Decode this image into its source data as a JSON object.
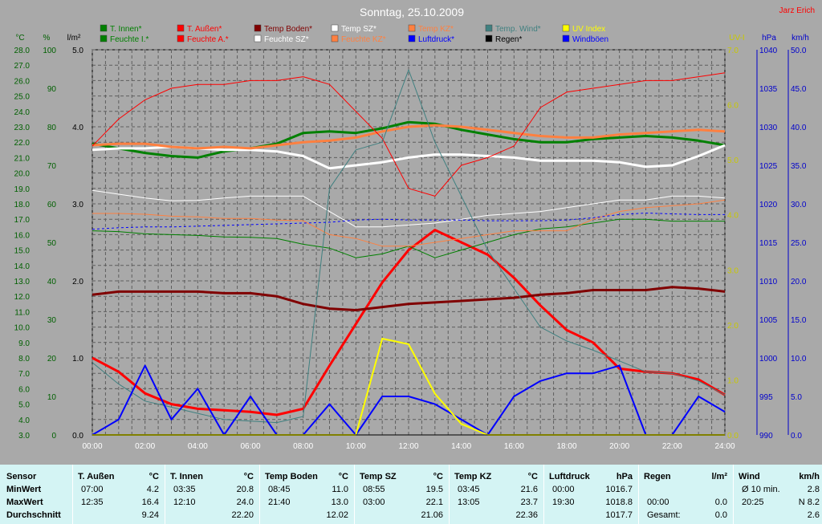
{
  "title": "Sonntag, 25.10.2009",
  "author": "Jarz Erich",
  "colors": {
    "background": "#a9a9a9",
    "plot": "#a9a9a9",
    "grid": "#5e5e5e",
    "green": "#00aa00",
    "navy": "#0000cc",
    "yellow": "#ffff00",
    "statsBg": "#d4f4f4"
  },
  "axes": {
    "left": [
      {
        "unit": "°C",
        "color": "#006000",
        "ticks": [
          "28.0",
          "27.0",
          "26.0",
          "25.0",
          "24.0",
          "23.0",
          "22.0",
          "21.0",
          "20.0",
          "19.0",
          "18.0",
          "17.0",
          "16.0",
          "15.0",
          "14.0",
          "13.0",
          "12.0",
          "11.0",
          "10.0",
          "9.0",
          "8.0",
          "7.0",
          "6.0",
          "5.0",
          "4.0",
          "3.0"
        ]
      },
      {
        "unit": "%",
        "color": "#006000",
        "ticks": [
          "100",
          "90",
          "80",
          "70",
          "60",
          "50",
          "40",
          "30",
          "20",
          "10",
          "0"
        ]
      },
      {
        "unit": "l/m²",
        "color": "#000000",
        "ticks": [
          "5.0",
          "4.0",
          "3.0",
          "2.0",
          "1.0",
          "0.0"
        ]
      }
    ],
    "right": [
      {
        "unit": "UV-I",
        "color": "#c8c800",
        "ticks": [
          "7.0",
          "6.0",
          "5.0",
          "4.0",
          "3.0",
          "2.0",
          "1.0",
          "0.0"
        ]
      },
      {
        "unit": "hPa",
        "color": "#0000cc",
        "ticks": [
          "1040",
          "1035",
          "1030",
          "1025",
          "1020",
          "1015",
          "1010",
          "1005",
          "1000",
          "995",
          "990"
        ]
      },
      {
        "unit": "km/h",
        "color": "#0000cc",
        "ticks": [
          "50.0",
          "45.0",
          "40.0",
          "35.0",
          "30.0",
          "25.0",
          "20.0",
          "15.0",
          "10.0",
          "5.0",
          "0.0"
        ]
      }
    ],
    "x": [
      "00:00",
      "02:00",
      "04:00",
      "06:00",
      "08:00",
      "10:00",
      "12:00",
      "14:00",
      "16:00",
      "18:00",
      "20:00",
      "22:00",
      "24:00"
    ]
  },
  "legend": [
    {
      "label": "T. Innen*",
      "color": "#008000"
    },
    {
      "label": "T. Außen*",
      "color": "#ff0000"
    },
    {
      "label": "Temp Boden*",
      "color": "#800000"
    },
    {
      "label": "Temp SZ*",
      "color": "#ffffff"
    },
    {
      "label": "Temp KZ*",
      "color": "#ff8040"
    },
    {
      "label": "Temp. Wind*",
      "color": "#408080"
    },
    {
      "label": "UV Index",
      "color": "#ffff00"
    },
    {
      "label": "Feuchte I.*",
      "color": "#008000"
    },
    {
      "label": "Feuchte A.*",
      "color": "#ff0000"
    },
    {
      "label": "Feuchte SZ*",
      "color": "#ffffff"
    },
    {
      "label": "Feuchte KZ*",
      "color": "#ff8040"
    },
    {
      "label": "Luftdruck*",
      "color": "#0000ff"
    },
    {
      "label": "Regen*",
      "color": "#000000"
    },
    {
      "label": "Windböen",
      "color": "#0000ff"
    }
  ],
  "chart_data": {
    "type": "line",
    "title": "Sonntag, 25.10.2009",
    "x_hours": [
      0,
      1,
      2,
      3,
      4,
      5,
      6,
      7,
      8,
      9,
      10,
      11,
      12,
      13,
      14,
      15,
      16,
      17,
      18,
      19,
      20,
      21,
      22,
      23,
      24
    ],
    "series": [
      {
        "name": "T. Innen*",
        "unit": "°C",
        "color": "#008000",
        "width": 3,
        "values": [
          21.9,
          21.6,
          21.3,
          21.1,
          21.0,
          21.4,
          21.6,
          21.9,
          22.6,
          22.7,
          22.6,
          22.9,
          23.3,
          23.2,
          22.8,
          22.5,
          22.2,
          22.0,
          22.0,
          22.2,
          22.3,
          22.4,
          22.3,
          22.1,
          21.8
        ]
      },
      {
        "name": "T. Außen*",
        "unit": "°C",
        "color": "#ff0000",
        "width": 3,
        "values": [
          8.0,
          7.1,
          5.7,
          5.0,
          4.7,
          4.6,
          4.5,
          4.3,
          4.7,
          7.5,
          10.2,
          12.9,
          15.0,
          16.3,
          15.5,
          14.7,
          13.2,
          11.4,
          9.8,
          9.0,
          7.3,
          7.1,
          7.0,
          6.6,
          5.6
        ]
      },
      {
        "name": "Temp Boden*",
        "unit": "°C",
        "color": "#800000",
        "width": 3,
        "values": [
          12.1,
          12.3,
          12.3,
          12.3,
          12.3,
          12.2,
          12.2,
          12.0,
          11.5,
          11.2,
          11.1,
          11.3,
          11.5,
          11.6,
          11.7,
          11.8,
          11.9,
          12.1,
          12.2,
          12.4,
          12.4,
          12.4,
          12.6,
          12.5,
          12.3
        ]
      },
      {
        "name": "Temp SZ*",
        "unit": "°C",
        "color": "#ffffff",
        "width": 3,
        "values": [
          21.5,
          21.6,
          21.6,
          21.7,
          21.6,
          21.5,
          21.5,
          21.4,
          21.1,
          20.3,
          20.5,
          20.7,
          21.0,
          21.2,
          21.2,
          21.1,
          21.0,
          20.8,
          20.8,
          20.8,
          20.7,
          20.4,
          20.5,
          21.1,
          21.8
        ]
      },
      {
        "name": "Temp KZ*",
        "unit": "°C",
        "color": "#ff8040",
        "width": 3,
        "values": [
          21.8,
          21.9,
          21.9,
          21.7,
          21.6,
          21.7,
          21.6,
          21.8,
          22.0,
          22.1,
          22.3,
          22.7,
          23.0,
          23.1,
          23.0,
          22.8,
          22.6,
          22.4,
          22.3,
          22.3,
          22.5,
          22.6,
          22.7,
          22.8,
          22.7
        ]
      },
      {
        "name": "Feuchte I.*",
        "unit": "%",
        "color": "#008000",
        "width": 1,
        "values": [
          53.0,
          52.8,
          52.2,
          52.0,
          51.8,
          51.4,
          51.3,
          51.0,
          49.5,
          48.5,
          46.0,
          47.0,
          49.0,
          46.0,
          48.0,
          50.0,
          52.0,
          53.5,
          54.0,
          55.0,
          56.0,
          56.0,
          55.5,
          55.5,
          55.5
        ]
      },
      {
        "name": "Feuchte A.*",
        "unit": "%",
        "color": "#ff0000",
        "width": 1,
        "values": [
          75,
          82,
          87,
          90,
          91,
          91,
          92,
          92,
          93,
          91,
          84,
          77,
          64,
          62,
          70,
          72,
          75,
          85,
          89,
          90,
          91,
          92,
          92,
          93,
          94
        ]
      },
      {
        "name": "Feuchte SZ*",
        "unit": "%",
        "color": "#ffffff",
        "width": 1,
        "values": [
          63.5,
          62.5,
          61.5,
          60.8,
          60.9,
          61.5,
          62.0,
          62.0,
          62.0,
          58.0,
          54.0,
          54.0,
          54.5,
          55.0,
          56.0,
          57.0,
          57.5,
          58.0,
          59.0,
          60.0,
          61.0,
          61.0,
          62.0,
          62.0,
          61.5
        ]
      },
      {
        "name": "Feuchte KZ*",
        "unit": "%",
        "color": "#ff8040",
        "width": 1,
        "values": [
          57.5,
          57.5,
          57.3,
          56.8,
          56.6,
          56.2,
          56.2,
          55.8,
          55.6,
          52.0,
          51.0,
          49.0,
          49.0,
          50.0,
          51.0,
          52.0,
          53.0,
          53.0,
          53.0,
          56.0,
          58.0,
          59.0,
          59.5,
          60.0,
          61.0
        ]
      },
      {
        "name": "Temp. Wind*",
        "unit": "°C",
        "color": "#408080",
        "width": 1,
        "values": [
          7.7,
          6.3,
          5.2,
          4.8,
          4.4,
          4.0,
          3.9,
          3.8,
          4.2,
          19.0,
          21.5,
          22.0,
          26.7,
          22.0,
          18.5,
          15.0,
          12.5,
          10.0,
          9.1,
          8.5,
          7.8,
          7.1,
          7.0,
          6.5,
          5.6
        ]
      },
      {
        "name": "Luftdruck*",
        "unit": "hPa",
        "color": "#0000ff",
        "width": 1,
        "dash": "3,3",
        "values": [
          1016.7,
          1016.9,
          1017.0,
          1017.0,
          1017.1,
          1017.2,
          1017.3,
          1017.4,
          1017.5,
          1017.6,
          1017.9,
          1018.0,
          1017.9,
          1017.9,
          1017.9,
          1017.8,
          1017.8,
          1017.8,
          1017.9,
          1018.2,
          1018.6,
          1018.8,
          1018.7,
          1018.6,
          1018.6
        ]
      },
      {
        "name": "Windböen",
        "unit": "km/h",
        "color": "#0000ff",
        "width": 2,
        "values": [
          0,
          2,
          9,
          2,
          6,
          0,
          5,
          0,
          0,
          4,
          0,
          5,
          5,
          4,
          2,
          0,
          5,
          7,
          8,
          8,
          9,
          0,
          0,
          5,
          3
        ]
      },
      {
        "name": "UV Index",
        "unit": "UV-I",
        "color": "#ffff00",
        "width": 2,
        "values": [
          0,
          0,
          0,
          0,
          0,
          0,
          0,
          0,
          0,
          0,
          0,
          1.75,
          1.65,
          0.75,
          0.2,
          0,
          0,
          0,
          0,
          0,
          0,
          0,
          0,
          0,
          0
        ]
      },
      {
        "name": "Regen*",
        "unit": "l/m²",
        "color": "#000000",
        "width": 1,
        "values": [
          0,
          0,
          0,
          0,
          0,
          0,
          0,
          0,
          0,
          0,
          0,
          0,
          0,
          0,
          0,
          0,
          0,
          0,
          0,
          0,
          0,
          0,
          0,
          0,
          0
        ]
      }
    ]
  },
  "stats": {
    "row_labels": [
      "Sensor",
      "MinWert",
      "MaxWert",
      "Durchschnitt"
    ],
    "columns": [
      {
        "name": "T. Außen",
        "unit": "°C",
        "min_time": "07:00",
        "min_val": "4.2",
        "max_time": "12:35",
        "max_val": "16.4",
        "avg": "9.24"
      },
      {
        "name": "T. Innen",
        "unit": "°C",
        "min_time": "03:35",
        "min_val": "20.8",
        "max_time": "12:10",
        "max_val": "24.0",
        "avg": "22.20"
      },
      {
        "name": "Temp Boden",
        "unit": "°C",
        "min_time": "08:45",
        "min_val": "11.0",
        "max_time": "21:40",
        "max_val": "13.0",
        "avg": "12.02"
      },
      {
        "name": "Temp SZ",
        "unit": "°C",
        "min_time": "08:55",
        "min_val": "19.5",
        "max_time": "03:00",
        "max_val": "22.1",
        "avg": "21.06"
      },
      {
        "name": "Temp KZ",
        "unit": "°C",
        "min_time": "03:45",
        "min_val": "21.6",
        "max_time": "13:05",
        "max_val": "23.7",
        "avg": "22.36"
      },
      {
        "name": "Luftdruck",
        "unit": "hPa",
        "min_time": "00:00",
        "min_val": "1016.7",
        "max_time": "19:30",
        "max_val": "1018.8",
        "avg": "1017.7"
      }
    ],
    "regen": {
      "name": "Regen",
      "unit": "l/m²",
      "max_time": "00:00",
      "max_val": "0.0",
      "gesamt_label": "Gesamt:",
      "gesamt_val": "0.0"
    },
    "wind": {
      "name": "Wind",
      "unit": "km/h",
      "avg_label": "Ø 10 min.",
      "avg_val": "2.8",
      "max_time": "20:25",
      "max_val": "N 8.2",
      "avg": "2.6"
    }
  }
}
